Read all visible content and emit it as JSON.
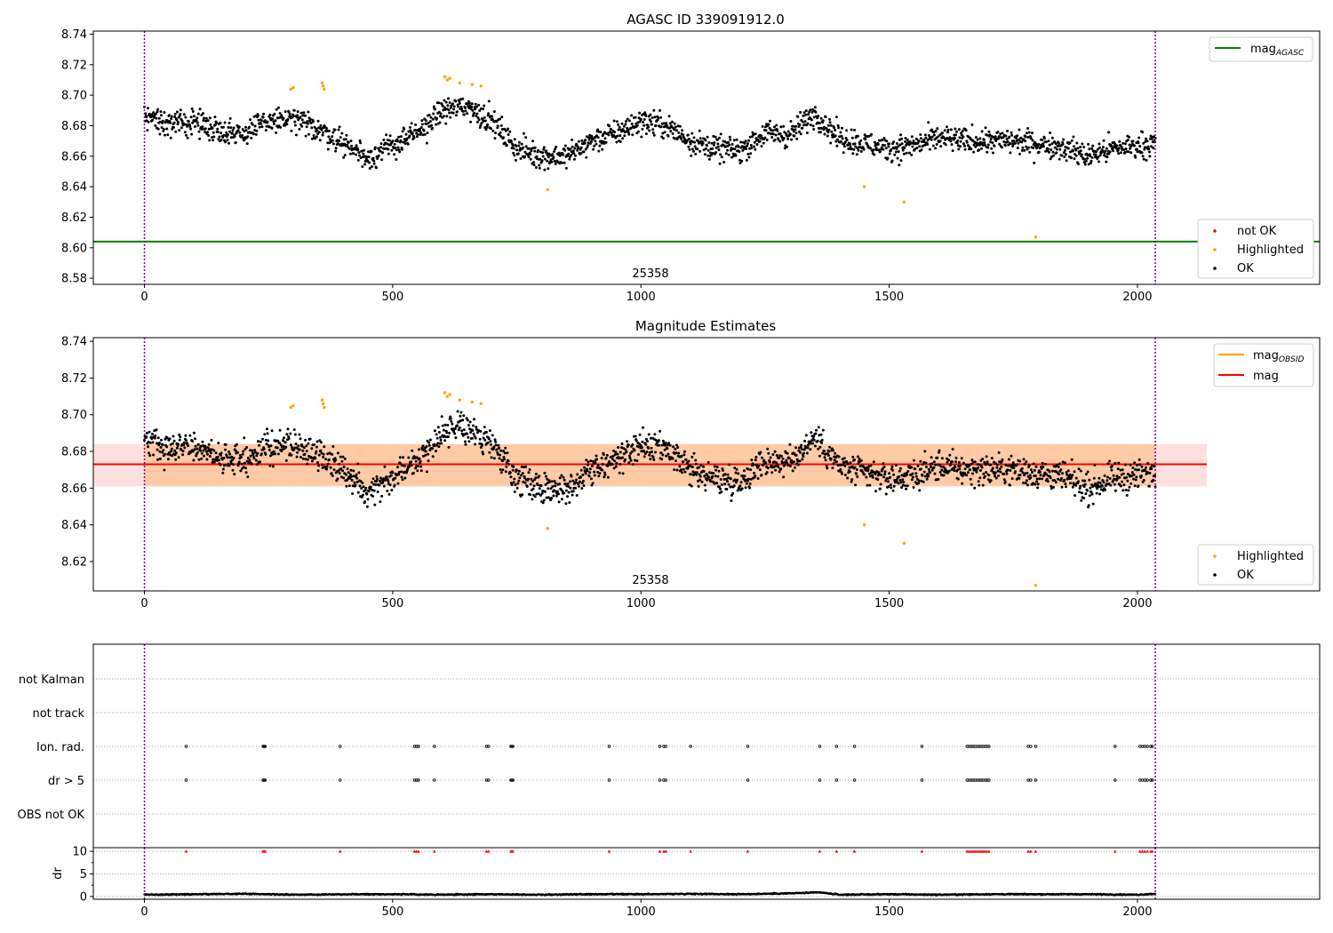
{
  "chart_data": [
    {
      "type": "scatter",
      "title": "AGASC ID 339091912.0",
      "annotation": "25358",
      "xlim": [
        -103,
        2367
      ],
      "ylim": [
        8.576,
        8.742
      ],
      "xticks": [
        0,
        500,
        1000,
        1500,
        2000
      ],
      "yticks": [
        8.58,
        8.6,
        8.62,
        8.64,
        8.66,
        8.68,
        8.7,
        8.72,
        8.74
      ],
      "ytick_decimals": 2,
      "vlines": [
        0,
        2036
      ],
      "hlines": [
        {
          "name": "mag_AGASC",
          "y": 8.604,
          "color": "#008000"
        }
      ],
      "legend_lines": [
        {
          "label": "mag",
          "subscript": "AGASC",
          "color": "#008000"
        }
      ],
      "legend_points": [
        {
          "label": "not OK",
          "color": "#ff0000"
        },
        {
          "label": "Highlighted",
          "color": "#ffa500"
        },
        {
          "label": "OK",
          "color": "#000000"
        }
      ],
      "series": [
        {
          "name": "OK",
          "color": "#000000",
          "x": [
            0,
            50,
            100,
            150,
            200,
            250,
            300,
            350,
            400,
            450,
            500,
            550,
            600,
            650,
            700,
            750,
            800,
            850,
            900,
            950,
            1000,
            1050,
            1100,
            1150,
            1200,
            1250,
            1300,
            1350,
            1400,
            1450,
            1500,
            1550,
            1600,
            1650,
            1700,
            1750,
            1800,
            1850,
            1900,
            1950,
            2000,
            2036
          ],
          "y": [
            8.688,
            8.68,
            8.683,
            8.677,
            8.675,
            8.683,
            8.684,
            8.678,
            8.669,
            8.659,
            8.667,
            8.675,
            8.69,
            8.693,
            8.683,
            8.665,
            8.66,
            8.66,
            8.67,
            8.675,
            8.683,
            8.68,
            8.67,
            8.665,
            8.664,
            8.675,
            8.674,
            8.688,
            8.672,
            8.668,
            8.665,
            8.667,
            8.672,
            8.67,
            8.67,
            8.67,
            8.668,
            8.666,
            8.66,
            8.665,
            8.667,
            8.668
          ],
          "scatter": 0.008
        },
        {
          "name": "Highlighted",
          "color": "#ffa500",
          "x": [
            295,
            300,
            358,
            360,
            362,
            605,
            610,
            615,
            635,
            660,
            678,
            812,
            1450,
            1530,
            1795
          ],
          "y": [
            8.704,
            8.705,
            8.708,
            8.706,
            8.704,
            8.712,
            8.71,
            8.711,
            8.708,
            8.707,
            8.706,
            8.638,
            8.64,
            8.63,
            8.607
          ]
        }
      ]
    },
    {
      "type": "scatter",
      "title": "Magnitude Estimates",
      "annotation": "25358",
      "xlim": [
        -103,
        2367
      ],
      "ylim": [
        8.604,
        8.742
      ],
      "xticks": [
        0,
        500,
        1000,
        1500,
        2000
      ],
      "yticks": [
        8.62,
        8.64,
        8.66,
        8.68,
        8.7,
        8.72,
        8.74
      ],
      "ytick_decimals": 2,
      "vlines": [
        0,
        2036
      ],
      "hlines": [
        {
          "name": "mag",
          "y": 8.673,
          "color": "#ff0000"
        }
      ],
      "bands": [
        {
          "name": "mag_OBSID-range",
          "y0": 8.661,
          "y1": 8.684,
          "x0": 0,
          "x1": 2036,
          "color": "#ffa500",
          "opacity": 0.25
        },
        {
          "name": "mag-range",
          "y0": 8.661,
          "y1": 8.684,
          "x0": -103,
          "x1": 2140,
          "color": "#ff0000",
          "opacity": 0.12
        }
      ],
      "legend_lines": [
        {
          "label": "mag",
          "subscript": "OBSID",
          "color": "#ffa500"
        },
        {
          "label": "mag",
          "subscript": "",
          "color": "#ff0000"
        }
      ],
      "legend_points": [
        {
          "label": "Highlighted",
          "color": "#ffa500"
        },
        {
          "label": "OK",
          "color": "#000000"
        }
      ],
      "series": [
        {
          "name": "OK",
          "color": "#000000",
          "x": [
            0,
            50,
            100,
            150,
            200,
            250,
            300,
            350,
            400,
            450,
            500,
            550,
            600,
            650,
            700,
            750,
            800,
            850,
            900,
            950,
            1000,
            1050,
            1100,
            1150,
            1200,
            1250,
            1300,
            1350,
            1400,
            1450,
            1500,
            1550,
            1600,
            1650,
            1700,
            1750,
            1800,
            1850,
            1900,
            1950,
            2000,
            2036
          ],
          "y": [
            8.688,
            8.68,
            8.683,
            8.677,
            8.675,
            8.683,
            8.684,
            8.678,
            8.669,
            8.659,
            8.667,
            8.675,
            8.69,
            8.693,
            8.683,
            8.665,
            8.66,
            8.66,
            8.67,
            8.675,
            8.683,
            8.68,
            8.67,
            8.665,
            8.664,
            8.675,
            8.674,
            8.688,
            8.672,
            8.668,
            8.665,
            8.667,
            8.672,
            8.67,
            8.67,
            8.67,
            8.668,
            8.666,
            8.66,
            8.665,
            8.667,
            8.668
          ],
          "scatter": 0.008
        },
        {
          "name": "Highlighted",
          "color": "#ffa500",
          "x": [
            295,
            300,
            358,
            360,
            362,
            605,
            610,
            615,
            635,
            660,
            678,
            812,
            1450,
            1530,
            1795
          ],
          "y": [
            8.704,
            8.705,
            8.708,
            8.706,
            8.704,
            8.712,
            8.71,
            8.711,
            8.708,
            8.707,
            8.706,
            8.638,
            8.64,
            8.63,
            8.607
          ]
        }
      ]
    },
    {
      "type": "scatter",
      "xlim": [
        -103,
        2367
      ],
      "xticks": [
        0,
        500,
        1000,
        1500,
        2000
      ],
      "vlines": [
        0,
        2036
      ],
      "category_labels": [
        "not Kalman",
        "not track",
        "Ion. rad.",
        "dr > 5",
        "OBS not OK"
      ],
      "flag_points": {
        "Ion. rad.": [
          84,
          239,
          241,
          243,
          394,
          544,
          548,
          552,
          584,
          689,
          693,
          738,
          740,
          742,
          936,
          1038,
          1046,
          1050,
          1100,
          1215,
          1360,
          1394,
          1430,
          1566,
          1657,
          1661,
          1665,
          1669,
          1673,
          1677,
          1681,
          1685,
          1689,
          1693,
          1697,
          1701,
          1780,
          1785,
          1795,
          1955,
          2005,
          2010,
          2015,
          2020,
          2027,
          2030
        ],
        "dr > 5": [
          84,
          239,
          241,
          243,
          394,
          544,
          548,
          552,
          584,
          689,
          693,
          738,
          740,
          742,
          936,
          1038,
          1046,
          1050,
          1215,
          1360,
          1394,
          1430,
          1566,
          1657,
          1661,
          1665,
          1669,
          1673,
          1677,
          1681,
          1685,
          1689,
          1693,
          1697,
          1701,
          1780,
          1785,
          1795,
          1955,
          2005,
          2010,
          2015,
          2020,
          2027,
          2030
        ]
      }
    },
    {
      "type": "scatter",
      "ylabel": "dr",
      "xlim": [
        -103,
        2367
      ],
      "ylim": [
        -0.6,
        10.8
      ],
      "xticks": [
        0,
        500,
        1000,
        1500,
        2000
      ],
      "yticks": [
        0,
        5,
        10
      ],
      "vlines": [
        0,
        2036
      ],
      "series": [
        {
          "name": "dr",
          "color": "#000000",
          "x": [
            0,
            100,
            200,
            300,
            400,
            500,
            600,
            700,
            800,
            900,
            1000,
            1100,
            1200,
            1300,
            1360,
            1400,
            1500,
            1600,
            1700,
            1800,
            1900,
            2000,
            2036
          ],
          "y": [
            0.4,
            0.5,
            0.6,
            0.4,
            0.5,
            0.5,
            0.4,
            0.5,
            0.4,
            0.5,
            0.5,
            0.6,
            0.5,
            0.7,
            0.9,
            0.4,
            0.5,
            0.4,
            0.5,
            0.5,
            0.5,
            0.4,
            0.6
          ]
        },
        {
          "name": "dr > 5",
          "color": "#ff0000",
          "marker": "triangle",
          "x": [
            84,
            239,
            241,
            243,
            394,
            544,
            548,
            552,
            584,
            689,
            693,
            738,
            740,
            742,
            936,
            1038,
            1046,
            1050,
            1100,
            1215,
            1360,
            1394,
            1430,
            1566,
            1657,
            1661,
            1665,
            1669,
            1673,
            1677,
            1681,
            1685,
            1689,
            1693,
            1697,
            1701,
            1780,
            1785,
            1795,
            1955,
            2005,
            2010,
            2015,
            2020,
            2027,
            2030
          ],
          "y": [
            10,
            10,
            10,
            10,
            10,
            10,
            10,
            10,
            10,
            10,
            10,
            10,
            10,
            10,
            10,
            10,
            10,
            10,
            10,
            10,
            10,
            10,
            10,
            10,
            10,
            10,
            10,
            10,
            10,
            10,
            10,
            10,
            10,
            10,
            10,
            10,
            10,
            10,
            10,
            10,
            10,
            10,
            10,
            10,
            10,
            10
          ]
        }
      ]
    }
  ]
}
